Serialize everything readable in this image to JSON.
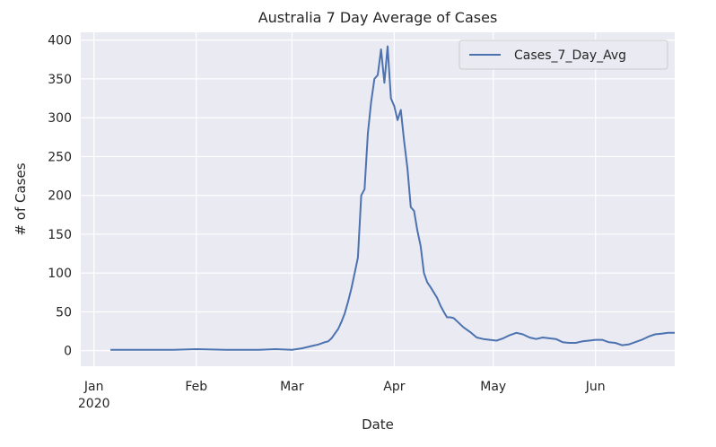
{
  "chart_data": {
    "type": "line",
    "title": "Australia 7 Day Average of Cases",
    "xlabel": "Date",
    "ylabel": "# of Cases",
    "x_ticks": [
      {
        "date": "2020-01-01",
        "label": "Jan",
        "sublabel": "2020"
      },
      {
        "date": "2020-02-01",
        "label": "Feb",
        "sublabel": ""
      },
      {
        "date": "2020-03-01",
        "label": "Mar",
        "sublabel": ""
      },
      {
        "date": "2020-04-01",
        "label": "Apr",
        "sublabel": ""
      },
      {
        "date": "2020-05-01",
        "label": "May",
        "sublabel": ""
      },
      {
        "date": "2020-06-01",
        "label": "Jun",
        "sublabel": ""
      }
    ],
    "y_ticks": [
      0,
      50,
      100,
      150,
      200,
      250,
      300,
      350,
      400
    ],
    "xlim": [
      "2019-12-28",
      "2020-06-25"
    ],
    "ylim": [
      -20,
      410
    ],
    "grid": true,
    "legend_position": "top-right",
    "colors": {
      "background": "#eaeaf2",
      "grid": "#ffffff",
      "line": "#4c72b0"
    },
    "series": [
      {
        "name": "Cases_7_Day_Avg",
        "x": [
          "2020-01-06",
          "2020-01-15",
          "2020-01-25",
          "2020-02-01",
          "2020-02-10",
          "2020-02-20",
          "2020-02-25",
          "2020-03-01",
          "2020-03-04",
          "2020-03-07",
          "2020-03-09",
          "2020-03-11",
          "2020-03-12",
          "2020-03-13",
          "2020-03-14",
          "2020-03-15",
          "2020-03-16",
          "2020-03-17",
          "2020-03-18",
          "2020-03-19",
          "2020-03-20",
          "2020-03-21",
          "2020-03-22",
          "2020-03-23",
          "2020-03-24",
          "2020-03-25",
          "2020-03-26",
          "2020-03-27",
          "2020-03-28",
          "2020-03-29",
          "2020-03-30",
          "2020-03-31",
          "2020-04-01",
          "2020-04-02",
          "2020-04-03",
          "2020-04-04",
          "2020-04-05",
          "2020-04-06",
          "2020-04-07",
          "2020-04-08",
          "2020-04-09",
          "2020-04-10",
          "2020-04-11",
          "2020-04-12",
          "2020-04-13",
          "2020-04-14",
          "2020-04-15",
          "2020-04-16",
          "2020-04-17",
          "2020-04-18",
          "2020-04-19",
          "2020-04-20",
          "2020-04-22",
          "2020-04-24",
          "2020-04-26",
          "2020-04-28",
          "2020-04-30",
          "2020-05-02",
          "2020-05-04",
          "2020-05-06",
          "2020-05-08",
          "2020-05-10",
          "2020-05-12",
          "2020-05-14",
          "2020-05-16",
          "2020-05-18",
          "2020-05-20",
          "2020-05-22",
          "2020-05-24",
          "2020-05-26",
          "2020-05-28",
          "2020-05-30",
          "2020-06-01",
          "2020-06-03",
          "2020-06-05",
          "2020-06-07",
          "2020-06-09",
          "2020-06-11",
          "2020-06-13",
          "2020-06-15",
          "2020-06-17",
          "2020-06-19",
          "2020-06-21",
          "2020-06-23",
          "2020-06-25"
        ],
        "values": [
          1,
          1,
          1,
          2,
          1,
          1,
          2,
          1,
          3,
          6,
          8,
          11,
          12,
          16,
          22,
          28,
          37,
          48,
          63,
          80,
          100,
          120,
          200,
          208,
          280,
          320,
          350,
          355,
          388,
          345,
          392,
          325,
          315,
          297,
          310,
          270,
          235,
          185,
          180,
          155,
          135,
          100,
          88,
          82,
          75,
          68,
          58,
          50,
          43,
          43,
          42,
          38,
          30,
          24,
          17,
          15,
          14,
          13,
          16,
          20,
          23,
          21,
          17,
          15,
          17,
          16,
          15,
          11,
          10,
          10,
          12,
          13,
          14,
          14,
          11,
          10,
          7,
          8,
          11,
          14,
          18,
          21,
          22,
          23,
          23
        ]
      }
    ]
  }
}
